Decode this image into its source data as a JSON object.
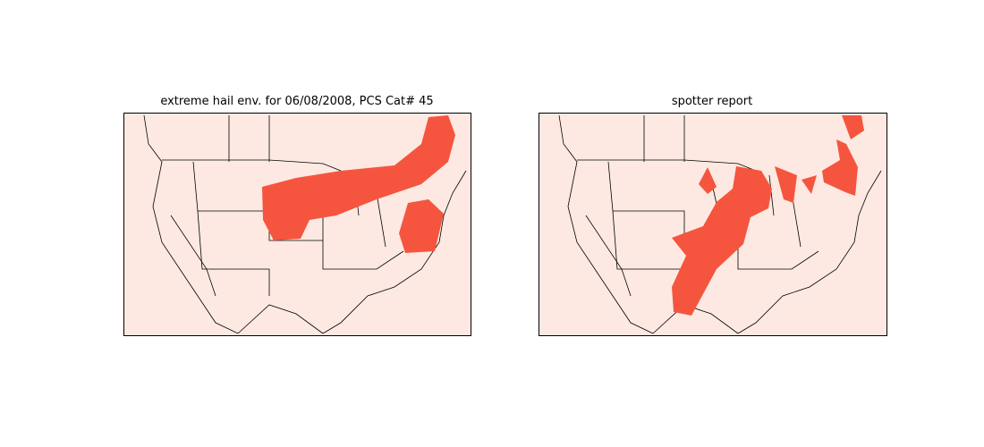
{
  "panels": [
    {
      "title": "extreme hail env. for 06/08/2008, PCS Cat# 45"
    },
    {
      "title": "spotter report"
    }
  ],
  "colors": {
    "land": "#fde9e2",
    "highlight": "#f5553f",
    "lines": "#000000"
  }
}
